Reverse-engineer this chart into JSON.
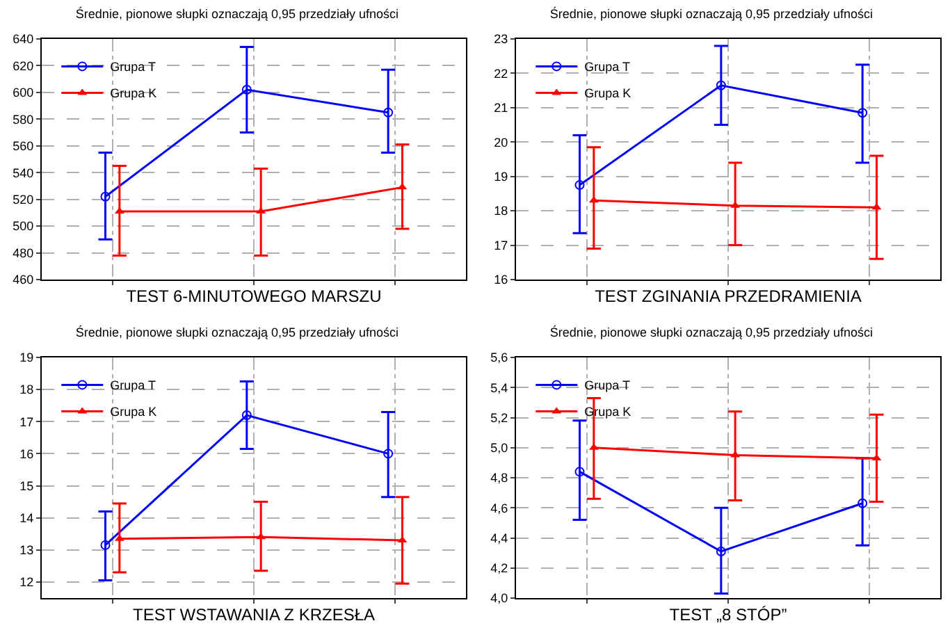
{
  "chart_data": [
    {
      "type": "line",
      "title": "Średnie, pionowe słupki oznaczają 0,95 przedziały ufności",
      "xlabel": "TEST 6-MINUTOWEGO MARSZU",
      "categories": [
        null,
        null,
        null
      ],
      "ylim": [
        460,
        640
      ],
      "yticks": [
        460,
        480,
        500,
        520,
        540,
        560,
        580,
        600,
        620,
        640
      ],
      "grid": true,
      "legend": "top left",
      "tick_labels": "y",
      "series": [
        {
          "name": "Grupa T",
          "color": "#0000ff",
          "marker": "circle",
          "values": [
            522,
            602,
            585
          ],
          "errors": [
            [
              490,
              555
            ],
            [
              570,
              634
            ],
            [
              555,
              617
            ]
          ]
        },
        {
          "name": "Grupa K",
          "color": "#ff0000",
          "marker": "triangle",
          "values": [
            511,
            511,
            529
          ],
          "errors": [
            [
              478,
              545
            ],
            [
              478,
              543
            ],
            [
              498,
              561
            ]
          ]
        }
      ]
    },
    {
      "type": "line",
      "title": "Średnie, pionowe słupki oznaczają 0,95 przedziały ufności",
      "xlabel": "TEST ZGINANIA PRZEDRAMIENIA",
      "categories": [
        null,
        null,
        null
      ],
      "ylim": [
        16,
        23
      ],
      "yticks": [
        16,
        17,
        18,
        19,
        20,
        21,
        22,
        23
      ],
      "grid": true,
      "legend": "top left",
      "tick_labels": "y",
      "series": [
        {
          "name": "Grupa T",
          "color": "#0000ff",
          "marker": "circle",
          "values": [
            18.75,
            21.65,
            20.85
          ],
          "errors": [
            [
              17.35,
              20.2
            ],
            [
              20.5,
              22.8
            ],
            [
              19.4,
              22.25
            ]
          ]
        },
        {
          "name": "Grupa K",
          "color": "#ff0000",
          "marker": "triangle",
          "values": [
            18.3,
            18.15,
            18.1
          ],
          "errors": [
            [
              16.9,
              19.85
            ],
            [
              17.0,
              19.4
            ],
            [
              16.6,
              19.6
            ]
          ]
        }
      ]
    },
    {
      "type": "line",
      "title": "Średnie, pionowe słupki oznaczają 0,95 przedziały ufności",
      "xlabel": "TEST WSTAWANIA Z KRZESŁA",
      "categories": [
        null,
        null,
        null
      ],
      "ylim": [
        11.5,
        19
      ],
      "yticks": [
        12,
        13,
        14,
        15,
        16,
        17,
        18,
        19
      ],
      "grid": true,
      "legend": "top left",
      "tick_labels": "y",
      "series": [
        {
          "name": "Grupa T",
          "color": "#0000ff",
          "marker": "circle",
          "values": [
            13.15,
            17.2,
            16.0
          ],
          "errors": [
            [
              12.05,
              14.2
            ],
            [
              16.15,
              18.25
            ],
            [
              14.65,
              17.3
            ]
          ]
        },
        {
          "name": "Grupa K",
          "color": "#ff0000",
          "marker": "triangle",
          "values": [
            13.35,
            13.4,
            13.3
          ],
          "errors": [
            [
              12.3,
              14.45
            ],
            [
              12.35,
              14.5
            ],
            [
              11.95,
              14.65
            ]
          ]
        }
      ]
    },
    {
      "type": "line",
      "title": "Średnie, pionowe słupki oznaczają 0,95 przedziały ufności",
      "xlabel": "TEST „8 STÓP”",
      "categories": [
        null,
        null,
        null
      ],
      "ylim": [
        4.0,
        5.6
      ],
      "yticks": [
        {
          "value": 4.0,
          "label": "4,0"
        },
        {
          "value": 4.2,
          "label": "4,2"
        },
        {
          "value": 4.4,
          "label": "4,4"
        },
        {
          "value": 4.6,
          "label": "4,6"
        },
        {
          "value": 4.8,
          "label": "4,8"
        },
        {
          "value": 5.0,
          "label": "5,0"
        },
        {
          "value": 5.2,
          "label": "5,2"
        },
        {
          "value": 5.4,
          "label": "5,4"
        },
        {
          "value": 5.6,
          "label": "5,6"
        }
      ],
      "grid": true,
      "legend": "top left",
      "tick_labels": "y",
      "series": [
        {
          "name": "Grupa T",
          "color": "#0000ff",
          "marker": "circle",
          "values": [
            4.84,
            4.31,
            4.63
          ],
          "errors": [
            [
              4.52,
              5.18
            ],
            [
              4.03,
              4.6
            ],
            [
              4.35,
              4.93
            ]
          ]
        },
        {
          "name": "Grupa K",
          "color": "#ff0000",
          "marker": "triangle",
          "values": [
            5.0,
            4.95,
            4.93
          ],
          "errors": [
            [
              4.66,
              5.33
            ],
            [
              4.65,
              5.24
            ],
            [
              4.64,
              5.22
            ]
          ]
        }
      ]
    }
  ]
}
